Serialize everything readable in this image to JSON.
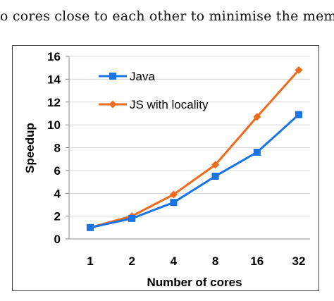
{
  "caption_fragment": "o cores close to each other to minimise the mem",
  "chart_data": {
    "type": "line",
    "title": "",
    "xlabel": "Number of cores",
    "ylabel": "Speedup",
    "categories": [
      "1",
      "2",
      "4",
      "8",
      "16",
      "32"
    ],
    "ylim": [
      0,
      16
    ],
    "yticks": [
      0,
      2,
      4,
      6,
      8,
      10,
      12,
      14,
      16
    ],
    "grid": "horizontal",
    "legend_position": "top-left",
    "series": [
      {
        "name": "Java",
        "color": "#1874e6",
        "marker": "square",
        "values": [
          1.0,
          1.8,
          3.2,
          5.5,
          7.6,
          10.9
        ]
      },
      {
        "name": "JS with locality",
        "color": "#f06a1c",
        "marker": "diamond",
        "values": [
          1.0,
          2.0,
          3.9,
          6.5,
          10.7,
          14.8
        ]
      }
    ]
  }
}
